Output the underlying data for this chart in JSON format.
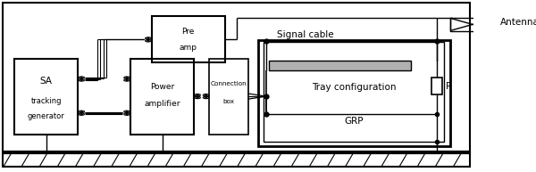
{
  "bg_color": "#ffffff",
  "line_color": "#000000",
  "fig_width": 6.0,
  "fig_height": 1.93,
  "dpi": 100,
  "sa_label1": "SA",
  "sa_label2": "tracking",
  "sa_label3": "generator",
  "pre_amp_label1": "Pre",
  "pre_amp_label2": "amp",
  "power_amp_label1": "Power",
  "power_amp_label2": "amplifier",
  "conn_label1": "Connection",
  "conn_label2": "box",
  "tray_label": "Tray configuration",
  "grp_label": "GRP",
  "antenna_label": "Antenna",
  "signal_cable_label": "Signal cable",
  "resistor_label": "R"
}
